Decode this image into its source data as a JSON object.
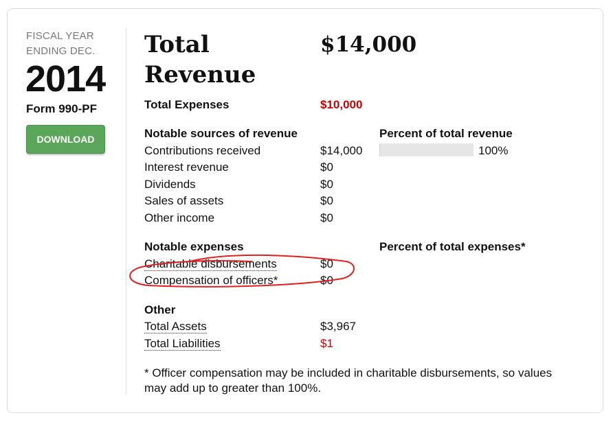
{
  "sidebar": {
    "fiscal_line1": "FISCAL YEAR",
    "fiscal_line2": "ENDING DEC.",
    "year": "2014",
    "form": "Form 990-PF",
    "download_label": "DOWNLOAD"
  },
  "header": {
    "title_line1": "Total",
    "title_line2": "Revenue",
    "total_revenue": "$14,000"
  },
  "expenses": {
    "label": "Total Expenses",
    "value": "$10,000"
  },
  "revenue": {
    "heading": "Notable sources of revenue",
    "percent_heading": "Percent of total revenue",
    "items": [
      {
        "label": "Contributions received",
        "value": "$14,000",
        "percent_text": "100%",
        "percent": 100
      },
      {
        "label": "Interest revenue",
        "value": "$0"
      },
      {
        "label": "Dividends",
        "value": "$0"
      },
      {
        "label": "Sales of assets",
        "value": "$0"
      },
      {
        "label": "Other income",
        "value": "$0"
      }
    ]
  },
  "notable_expenses": {
    "heading": "Notable expenses",
    "percent_heading": "Percent of total expenses*",
    "items": [
      {
        "label": "Charitable disbursements",
        "value": "$0"
      },
      {
        "label": "Compensation of officers*",
        "value": "$0"
      }
    ]
  },
  "other": {
    "heading": "Other",
    "items": [
      {
        "label": "Total Assets",
        "value": "$3,967"
      },
      {
        "label": "Total Liabilities",
        "value": "$1"
      }
    ]
  },
  "footnote": "* Officer compensation may be included in charitable disbursements, so values may add up to greater than 100%.",
  "colors": {
    "accent_red": "#cc0000",
    "button_green": "#5aa65a",
    "annotation_red": "#e02020"
  }
}
